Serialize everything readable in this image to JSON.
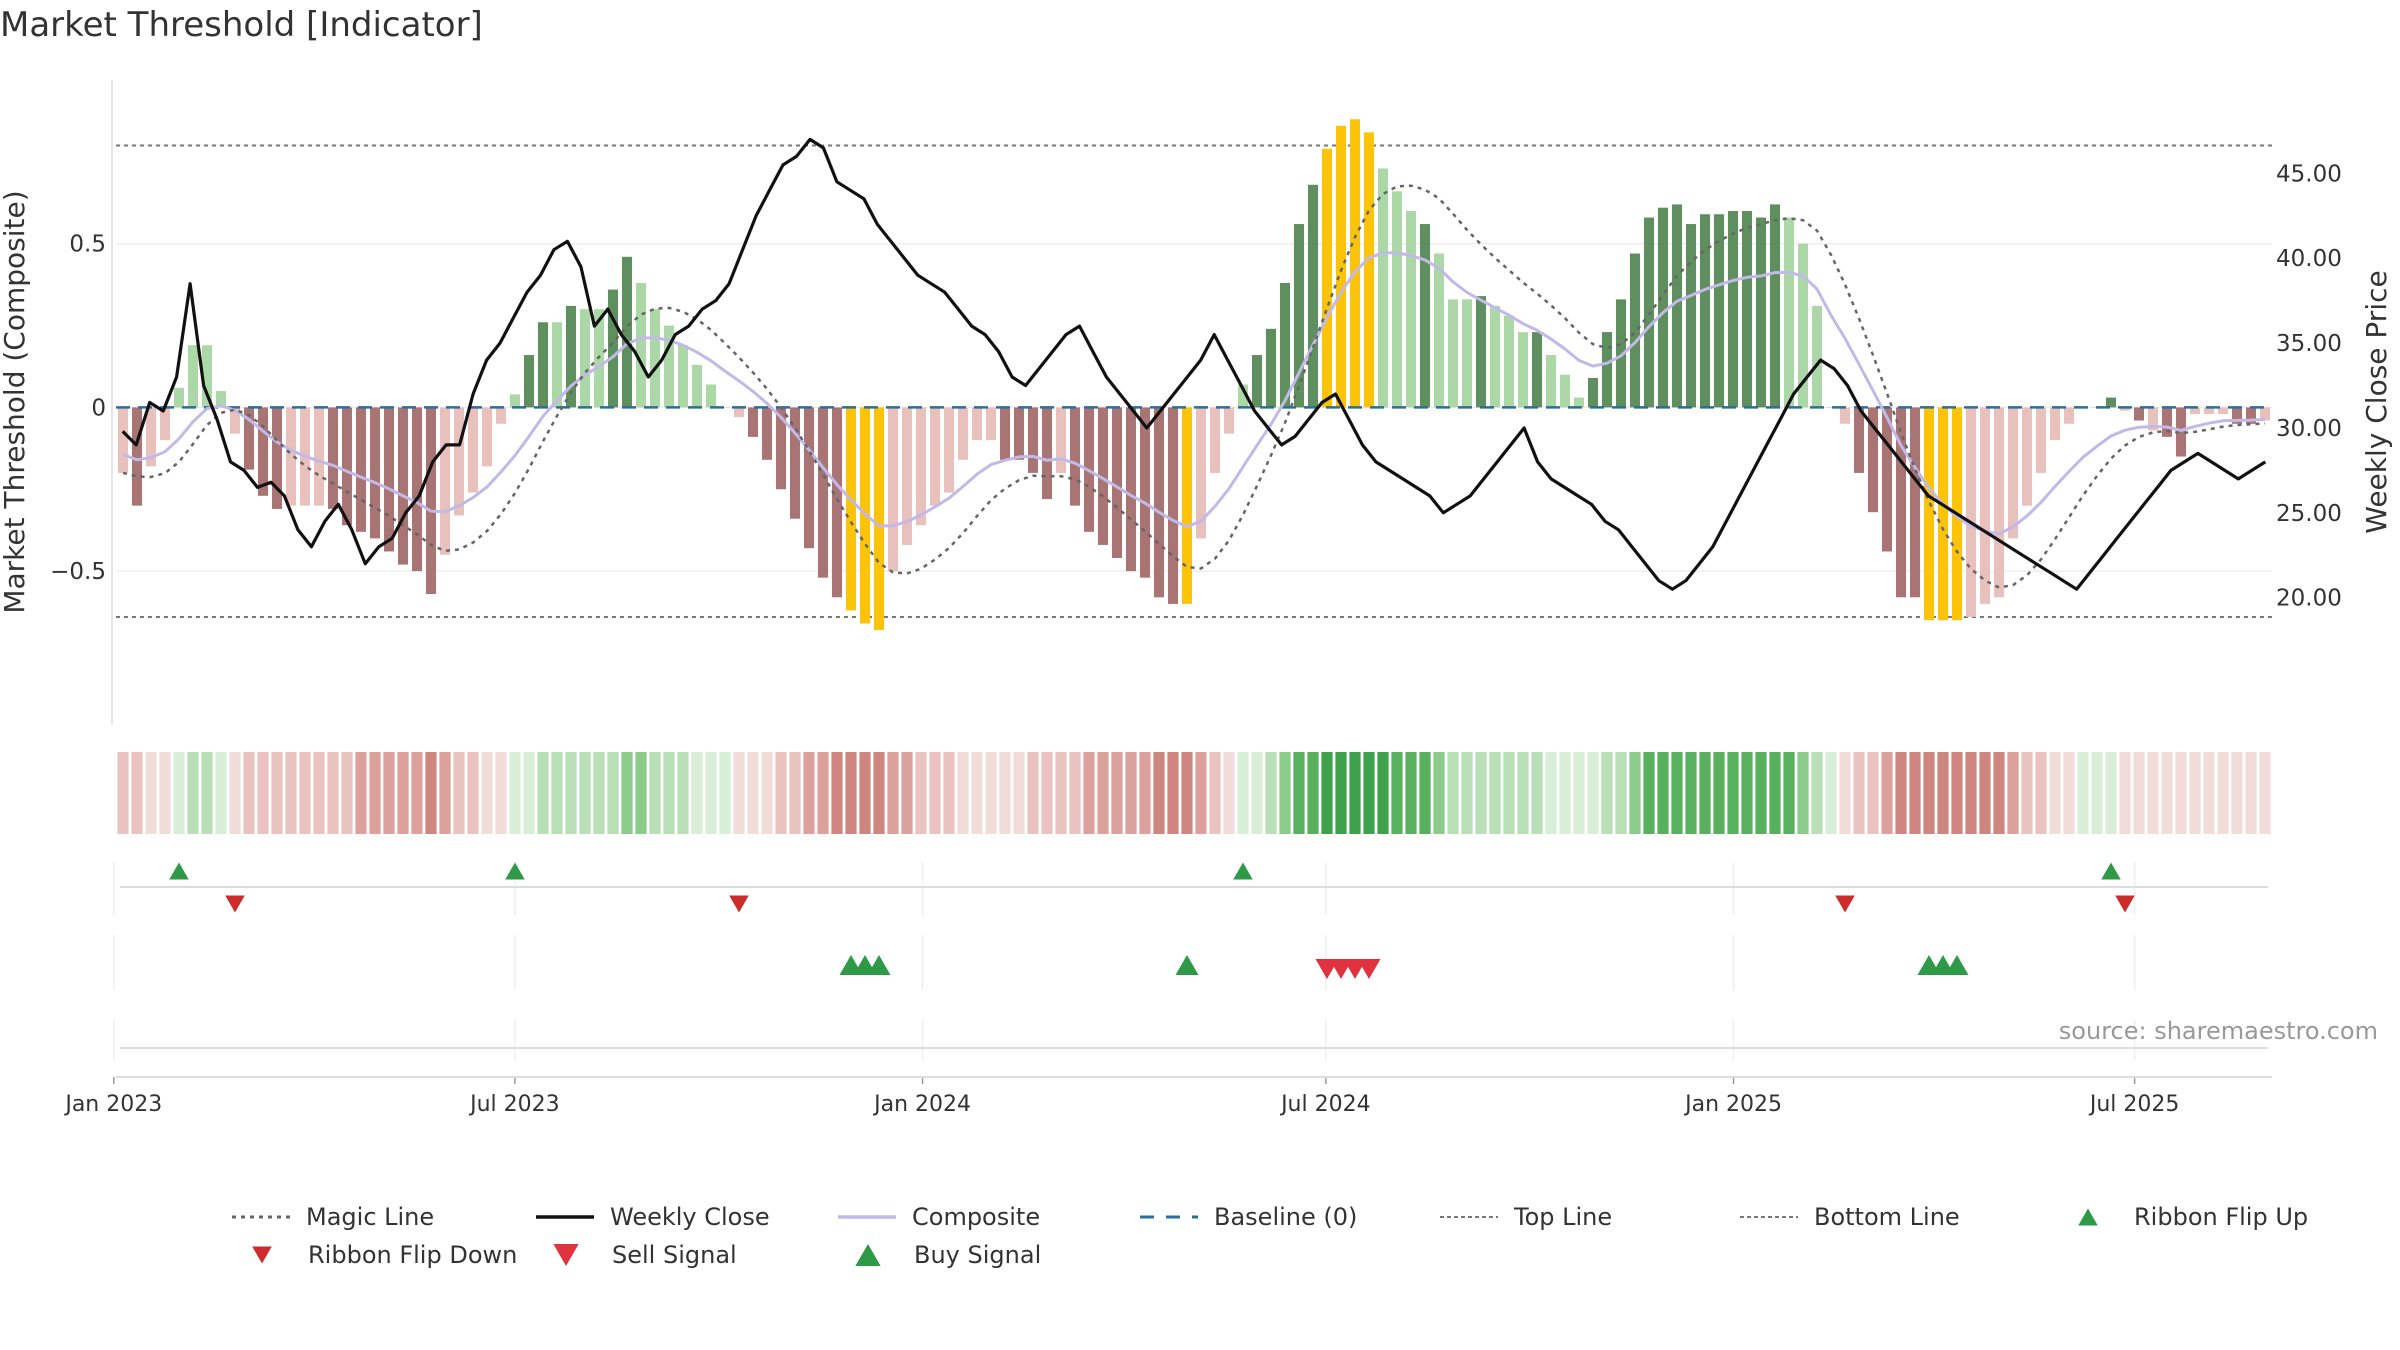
{
  "chart_data": {
    "type": "bar",
    "title": "Market Threshold [Indicator]",
    "ylabel_left": "Market Threshold (Composite)",
    "ylabel_right": "Weekly Close Price",
    "source": "source: sharemaestro.com",
    "x_start": "2023-01-02",
    "x_end": "2025-09-01",
    "x_ticks": [
      {
        "date": "2023-01-01",
        "label": "Jan 2023"
      },
      {
        "date": "2023-07-01",
        "label": "Jul 2023"
      },
      {
        "date": "2024-01-01",
        "label": "Jan 2024"
      },
      {
        "date": "2024-07-01",
        "label": "Jul 2024"
      },
      {
        "date": "2025-01-01",
        "label": "Jan 2025"
      },
      {
        "date": "2025-07-01",
        "label": "Jul 2025"
      }
    ],
    "ylim_left": [
      -0.97,
      1.0
    ],
    "yticks_left": [
      {
        "v": 0.5,
        "label": "0.5"
      },
      {
        "v": 0,
        "label": "0"
      },
      {
        "v": -0.5,
        "label": "−0.5"
      }
    ],
    "ylim_right": [
      12.5,
      50.5
    ],
    "yticks_right": [
      {
        "v": 45,
        "label": "45.00"
      },
      {
        "v": 40,
        "label": "40.00"
      },
      {
        "v": 35,
        "label": "35.00"
      },
      {
        "v": 30,
        "label": "30.00"
      },
      {
        "v": 25,
        "label": "25.00"
      },
      {
        "v": 20,
        "label": "20.00"
      }
    ],
    "top_line": 0.8,
    "bottom_line": -0.64,
    "colors": {
      "pos_strong": "#5f8f5f",
      "pos_weak": "#acd8a7",
      "neg_strong": "#a87474",
      "neg_weak": "#e8c0bc",
      "extreme": "#fcc30b",
      "close": "#111111",
      "composite": "#c3b9e8",
      "magic": "#666666",
      "baseline": "#2a6f97",
      "threshold": "#777777",
      "ribbon_up": "#2e9a48",
      "ribbon_down": "#cc2c2c",
      "sell": "#e0323f",
      "buy": "#2e9a48"
    },
    "histogram": [
      {
        "v": -0.2,
        "c": "neg_weak"
      },
      {
        "v": -0.3,
        "c": "neg_strong"
      },
      {
        "v": -0.18,
        "c": "neg_weak"
      },
      {
        "v": -0.1,
        "c": "neg_weak"
      },
      {
        "v": 0.06,
        "c": "pos_weak"
      },
      {
        "v": 0.19,
        "c": "pos_weak"
      },
      {
        "v": 0.19,
        "c": "pos_weak"
      },
      {
        "v": 0.05,
        "c": "pos_weak"
      },
      {
        "v": -0.08,
        "c": "neg_weak"
      },
      {
        "v": -0.19,
        "c": "neg_strong"
      },
      {
        "v": -0.27,
        "c": "neg_strong"
      },
      {
        "v": -0.31,
        "c": "neg_strong"
      },
      {
        "v": -0.3,
        "c": "neg_weak"
      },
      {
        "v": -0.3,
        "c": "neg_weak"
      },
      {
        "v": -0.3,
        "c": "neg_weak"
      },
      {
        "v": -0.31,
        "c": "neg_strong"
      },
      {
        "v": -0.36,
        "c": "neg_strong"
      },
      {
        "v": -0.38,
        "c": "neg_strong"
      },
      {
        "v": -0.4,
        "c": "neg_strong"
      },
      {
        "v": -0.44,
        "c": "neg_strong"
      },
      {
        "v": -0.48,
        "c": "neg_strong"
      },
      {
        "v": -0.5,
        "c": "neg_strong"
      },
      {
        "v": -0.57,
        "c": "neg_strong"
      },
      {
        "v": -0.45,
        "c": "neg_weak"
      },
      {
        "v": -0.33,
        "c": "neg_weak"
      },
      {
        "v": -0.26,
        "c": "neg_weak"
      },
      {
        "v": -0.18,
        "c": "neg_weak"
      },
      {
        "v": -0.05,
        "c": "neg_weak"
      },
      {
        "v": 0.04,
        "c": "pos_weak"
      },
      {
        "v": 0.16,
        "c": "pos_strong"
      },
      {
        "v": 0.26,
        "c": "pos_strong"
      },
      {
        "v": 0.26,
        "c": "pos_weak"
      },
      {
        "v": 0.31,
        "c": "pos_strong"
      },
      {
        "v": 0.3,
        "c": "pos_weak"
      },
      {
        "v": 0.3,
        "c": "pos_weak"
      },
      {
        "v": 0.36,
        "c": "pos_strong"
      },
      {
        "v": 0.46,
        "c": "pos_strong"
      },
      {
        "v": 0.38,
        "c": "pos_weak"
      },
      {
        "v": 0.3,
        "c": "pos_weak"
      },
      {
        "v": 0.25,
        "c": "pos_weak"
      },
      {
        "v": 0.19,
        "c": "pos_weak"
      },
      {
        "v": 0.13,
        "c": "pos_weak"
      },
      {
        "v": 0.07,
        "c": "pos_weak"
      },
      {
        "v": 0.0,
        "c": "pos_weak"
      },
      {
        "v": -0.03,
        "c": "neg_weak"
      },
      {
        "v": -0.09,
        "c": "neg_strong"
      },
      {
        "v": -0.16,
        "c": "neg_strong"
      },
      {
        "v": -0.25,
        "c": "neg_strong"
      },
      {
        "v": -0.34,
        "c": "neg_strong"
      },
      {
        "v": -0.43,
        "c": "neg_strong"
      },
      {
        "v": -0.52,
        "c": "neg_strong"
      },
      {
        "v": -0.58,
        "c": "neg_strong"
      },
      {
        "v": -0.62,
        "c": "extreme"
      },
      {
        "v": -0.66,
        "c": "extreme"
      },
      {
        "v": -0.68,
        "c": "extreme"
      },
      {
        "v": -0.5,
        "c": "neg_weak"
      },
      {
        "v": -0.42,
        "c": "neg_weak"
      },
      {
        "v": -0.36,
        "c": "neg_weak"
      },
      {
        "v": -0.3,
        "c": "neg_weak"
      },
      {
        "v": -0.26,
        "c": "neg_weak"
      },
      {
        "v": -0.16,
        "c": "neg_weak"
      },
      {
        "v": -0.1,
        "c": "neg_weak"
      },
      {
        "v": -0.1,
        "c": "neg_weak"
      },
      {
        "v": -0.16,
        "c": "neg_strong"
      },
      {
        "v": -0.16,
        "c": "neg_strong"
      },
      {
        "v": -0.2,
        "c": "neg_strong"
      },
      {
        "v": -0.28,
        "c": "neg_strong"
      },
      {
        "v": -0.2,
        "c": "neg_weak"
      },
      {
        "v": -0.3,
        "c": "neg_strong"
      },
      {
        "v": -0.38,
        "c": "neg_strong"
      },
      {
        "v": -0.42,
        "c": "neg_strong"
      },
      {
        "v": -0.46,
        "c": "neg_strong"
      },
      {
        "v": -0.5,
        "c": "neg_strong"
      },
      {
        "v": -0.52,
        "c": "neg_strong"
      },
      {
        "v": -0.58,
        "c": "neg_strong"
      },
      {
        "v": -0.6,
        "c": "neg_strong"
      },
      {
        "v": -0.6,
        "c": "extreme"
      },
      {
        "v": -0.4,
        "c": "neg_weak"
      },
      {
        "v": -0.2,
        "c": "neg_weak"
      },
      {
        "v": -0.08,
        "c": "neg_weak"
      },
      {
        "v": 0.07,
        "c": "pos_weak"
      },
      {
        "v": 0.16,
        "c": "pos_strong"
      },
      {
        "v": 0.24,
        "c": "pos_strong"
      },
      {
        "v": 0.38,
        "c": "pos_strong"
      },
      {
        "v": 0.56,
        "c": "pos_strong"
      },
      {
        "v": 0.68,
        "c": "pos_strong"
      },
      {
        "v": 0.79,
        "c": "extreme"
      },
      {
        "v": 0.86,
        "c": "extreme"
      },
      {
        "v": 0.88,
        "c": "extreme"
      },
      {
        "v": 0.84,
        "c": "extreme"
      },
      {
        "v": 0.73,
        "c": "pos_weak"
      },
      {
        "v": 0.66,
        "c": "pos_weak"
      },
      {
        "v": 0.6,
        "c": "pos_weak"
      },
      {
        "v": 0.56,
        "c": "pos_strong"
      },
      {
        "v": 0.47,
        "c": "pos_weak"
      },
      {
        "v": 0.33,
        "c": "pos_weak"
      },
      {
        "v": 0.33,
        "c": "pos_weak"
      },
      {
        "v": 0.34,
        "c": "pos_strong"
      },
      {
        "v": 0.31,
        "c": "pos_weak"
      },
      {
        "v": 0.28,
        "c": "pos_weak"
      },
      {
        "v": 0.23,
        "c": "pos_weak"
      },
      {
        "v": 0.23,
        "c": "pos_strong"
      },
      {
        "v": 0.16,
        "c": "pos_weak"
      },
      {
        "v": 0.1,
        "c": "pos_weak"
      },
      {
        "v": 0.03,
        "c": "pos_weak"
      },
      {
        "v": 0.09,
        "c": "pos_strong"
      },
      {
        "v": 0.23,
        "c": "pos_strong"
      },
      {
        "v": 0.33,
        "c": "pos_strong"
      },
      {
        "v": 0.47,
        "c": "pos_strong"
      },
      {
        "v": 0.58,
        "c": "pos_strong"
      },
      {
        "v": 0.61,
        "c": "pos_strong"
      },
      {
        "v": 0.62,
        "c": "pos_strong"
      },
      {
        "v": 0.56,
        "c": "pos_strong"
      },
      {
        "v": 0.59,
        "c": "pos_strong"
      },
      {
        "v": 0.59,
        "c": "pos_strong"
      },
      {
        "v": 0.6,
        "c": "pos_strong"
      },
      {
        "v": 0.6,
        "c": "pos_strong"
      },
      {
        "v": 0.58,
        "c": "pos_strong"
      },
      {
        "v": 0.62,
        "c": "pos_strong"
      },
      {
        "v": 0.58,
        "c": "pos_weak"
      },
      {
        "v": 0.5,
        "c": "pos_weak"
      },
      {
        "v": 0.31,
        "c": "pos_weak"
      },
      {
        "v": 0.0,
        "c": "pos_weak"
      },
      {
        "v": -0.05,
        "c": "neg_weak"
      },
      {
        "v": -0.2,
        "c": "neg_strong"
      },
      {
        "v": -0.32,
        "c": "neg_strong"
      },
      {
        "v": -0.44,
        "c": "neg_strong"
      },
      {
        "v": -0.58,
        "c": "neg_strong"
      },
      {
        "v": -0.58,
        "c": "neg_strong"
      },
      {
        "v": -0.65,
        "c": "extreme"
      },
      {
        "v": -0.65,
        "c": "extreme"
      },
      {
        "v": -0.65,
        "c": "extreme"
      },
      {
        "v": -0.64,
        "c": "neg_weak"
      },
      {
        "v": -0.6,
        "c": "neg_weak"
      },
      {
        "v": -0.58,
        "c": "neg_weak"
      },
      {
        "v": -0.4,
        "c": "neg_weak"
      },
      {
        "v": -0.3,
        "c": "neg_weak"
      },
      {
        "v": -0.2,
        "c": "neg_weak"
      },
      {
        "v": -0.1,
        "c": "neg_weak"
      },
      {
        "v": -0.05,
        "c": "neg_weak"
      },
      {
        "v": 0.0,
        "c": "pos_weak"
      },
      {
        "v": 0.0,
        "c": "pos_weak"
      },
      {
        "v": 0.03,
        "c": "pos_strong"
      },
      {
        "v": -0.01,
        "c": "neg_weak"
      },
      {
        "v": -0.04,
        "c": "neg_strong"
      },
      {
        "v": -0.07,
        "c": "neg_weak"
      },
      {
        "v": -0.09,
        "c": "neg_strong"
      },
      {
        "v": -0.15,
        "c": "neg_strong"
      },
      {
        "v": -0.02,
        "c": "neg_weak"
      },
      {
        "v": -0.02,
        "c": "neg_weak"
      },
      {
        "v": -0.02,
        "c": "neg_weak"
      },
      {
        "v": -0.05,
        "c": "neg_strong"
      },
      {
        "v": -0.05,
        "c": "neg_strong"
      },
      {
        "v": -0.04,
        "c": "neg_weak"
      }
    ],
    "weekly_close": [
      29.8,
      29.0,
      31.5,
      31.0,
      33.0,
      38.5,
      32.5,
      30.5,
      28.0,
      27.5,
      26.5,
      26.8,
      26.0,
      24.0,
      23.0,
      24.5,
      25.5,
      24.0,
      22.0,
      23.0,
      23.5,
      25.0,
      26.0,
      28.0,
      29.0,
      29.0,
      32.0,
      34.0,
      35.0,
      36.5,
      38.0,
      39.0,
      40.5,
      41.0,
      39.5,
      36.0,
      37.0,
      35.5,
      34.5,
      33.0,
      34.0,
      35.5,
      36.0,
      37.0,
      37.5,
      38.5,
      40.5,
      42.5,
      44.0,
      45.5,
      46.0,
      47.0,
      46.5,
      44.5,
      44.0,
      43.5,
      42.0,
      41.0,
      40.0,
      39.0,
      38.5,
      38.0,
      37.0,
      36.0,
      35.5,
      34.5,
      33.0,
      32.5,
      33.5,
      34.5,
      35.5,
      36.0,
      34.5,
      33.0,
      32.0,
      31.0,
      30.0,
      31.0,
      32.0,
      33.0,
      34.0,
      35.5,
      34.0,
      32.5,
      31.0,
      30.0,
      29.0,
      29.5,
      30.5,
      31.5,
      32.0,
      30.5,
      29.0,
      28.0,
      27.5,
      27.0,
      26.5,
      26.0,
      25.0,
      25.5,
      26.0,
      27.0,
      28.0,
      29.0,
      30.0,
      28.0,
      27.0,
      26.5,
      26.0,
      25.5,
      24.5,
      24.0,
      23.0,
      22.0,
      21.0,
      20.5,
      21.0,
      22.0,
      23.0,
      24.5,
      26.0,
      27.5,
      29.0,
      30.5,
      32.0,
      33.0,
      34.0,
      33.5,
      32.5,
      31.0,
      30.0,
      29.0,
      28.0,
      27.0,
      26.0,
      25.5,
      25.0,
      24.5,
      24.0,
      23.5,
      23.0,
      22.5,
      22.0,
      21.5,
      21.0,
      20.5,
      21.5,
      22.5,
      23.5,
      24.5,
      25.5,
      26.5,
      27.5,
      28.0,
      28.5,
      28.0,
      27.5,
      27.0,
      27.5,
      28.0
    ],
    "legend": [
      {
        "label": "Magic Line",
        "sym": "magic"
      },
      {
        "label": "Weekly Close",
        "sym": "close"
      },
      {
        "label": "Composite",
        "sym": "composite"
      },
      {
        "label": "Baseline (0)",
        "sym": "baseline"
      },
      {
        "label": "Top Line",
        "sym": "topline"
      },
      {
        "label": "Bottom Line",
        "sym": "bottomline"
      },
      {
        "label": "Ribbon Flip Up",
        "sym": "ribbon_up"
      },
      {
        "label": "Ribbon Flip Down",
        "sym": "ribbon_down"
      },
      {
        "label": "Sell Signal",
        "sym": "sell"
      },
      {
        "label": "Buy Signal",
        "sym": "buy"
      }
    ]
  }
}
